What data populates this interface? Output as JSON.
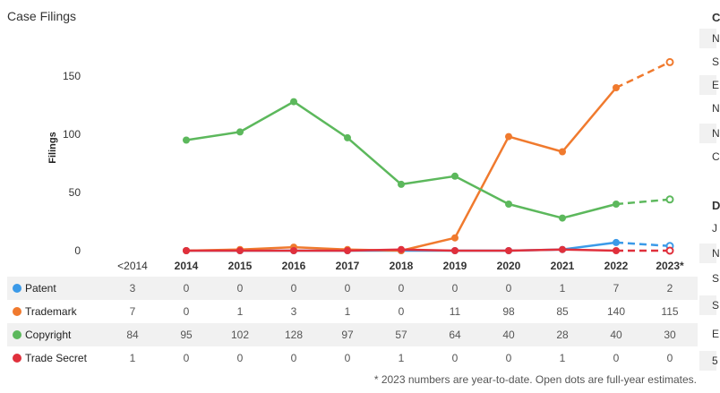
{
  "chart_data": {
    "type": "line",
    "title": "Case Filings",
    "ylabel": "Filings",
    "ylim": [
      0,
      175
    ],
    "yticks": [
      0,
      50,
      100,
      150
    ],
    "categories": [
      "<2014",
      "2014",
      "2015",
      "2016",
      "2017",
      "2018",
      "2019",
      "2020",
      "2021",
      "2022",
      "2023*"
    ],
    "grid": false,
    "legend": "table-below",
    "series": [
      {
        "name": "Patent",
        "color": "#3b9ae8",
        "values": [
          3,
          0,
          0,
          0,
          0,
          0,
          0,
          0,
          1,
          7,
          2
        ],
        "chart_values": [
          null,
          0,
          0,
          0,
          0,
          0,
          0,
          0,
          1,
          7,
          4
        ]
      },
      {
        "name": "Trademark",
        "color": "#f07a2e",
        "values": [
          7,
          0,
          1,
          3,
          1,
          0,
          11,
          98,
          85,
          140,
          115
        ],
        "chart_values": [
          null,
          0,
          1,
          3,
          1,
          0,
          11,
          98,
          85,
          140,
          162
        ]
      },
      {
        "name": "Copyright",
        "color": "#5cb85c",
        "values": [
          84,
          95,
          102,
          128,
          97,
          57,
          64,
          40,
          28,
          40,
          30
        ],
        "chart_values": [
          null,
          95,
          102,
          128,
          97,
          57,
          64,
          40,
          28,
          40,
          44
        ]
      },
      {
        "name": "Trade Secret",
        "color": "#e0303c",
        "values": [
          1,
          0,
          0,
          0,
          0,
          1,
          0,
          0,
          1,
          0,
          0
        ],
        "chart_values": [
          null,
          0,
          0,
          0,
          0,
          1,
          0,
          0,
          1,
          0,
          0
        ]
      }
    ],
    "footnote": "* 2023 numbers are year-to-date. Open dots are full-year estimates."
  },
  "side_panel": {
    "items": [
      {
        "text": "C",
        "heading": true
      },
      {
        "text": "N"
      },
      {
        "text": "S"
      },
      {
        "text": "E"
      },
      {
        "text": "N"
      },
      {
        "text": "N"
      },
      {
        "text": "C"
      },
      {
        "text": "D",
        "heading": true
      },
      {
        "text": "J"
      },
      {
        "text": "N"
      },
      {
        "text": "S"
      },
      {
        "text": "S"
      },
      {
        "text": "E"
      },
      {
        "text": "5"
      }
    ]
  }
}
